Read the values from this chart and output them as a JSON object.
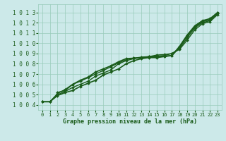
{
  "xlabel": "Graphe pression niveau de la mer (hPa)",
  "xlim": [
    -0.5,
    23.5
  ],
  "ylim": [
    1003.5,
    1013.8
  ],
  "yticks": [
    1004,
    1005,
    1006,
    1007,
    1008,
    1009,
    1010,
    1011,
    1012,
    1013
  ],
  "xticks": [
    0,
    1,
    2,
    3,
    4,
    5,
    6,
    7,
    8,
    9,
    10,
    11,
    12,
    13,
    14,
    15,
    16,
    17,
    18,
    19,
    20,
    21,
    22,
    23
  ],
  "background_color": "#cce9e9",
  "grid_color": "#99ccbb",
  "line_color": "#1a5c1a",
  "series": [
    {
      "x": [
        0,
        1,
        2,
        3,
        4,
        5,
        6,
        7,
        8,
        9,
        10,
        11,
        12,
        13,
        14,
        15,
        16,
        17,
        18,
        19,
        20,
        21,
        22,
        23
      ],
      "y": [
        1004.3,
        1004.3,
        1004.9,
        1005.2,
        1005.4,
        1005.8,
        1006.1,
        1006.4,
        1006.9,
        1007.2,
        1007.5,
        1008.0,
        1008.3,
        1008.5,
        1008.6,
        1008.6,
        1008.7,
        1008.8,
        1009.6,
        1010.7,
        1011.6,
        1012.1,
        1012.3,
        1013.0
      ],
      "linewidth": 1.2
    },
    {
      "x": [
        0,
        1,
        2,
        3,
        4,
        5,
        6,
        7,
        8,
        9,
        10,
        11,
        12,
        13,
        14,
        15,
        16,
        17,
        18,
        19,
        20,
        21,
        22,
        23
      ],
      "y": [
        1004.3,
        1004.3,
        1005.0,
        1005.3,
        1005.7,
        1006.0,
        1006.3,
        1006.8,
        1007.1,
        1007.4,
        1008.0,
        1008.3,
        1008.5,
        1008.6,
        1008.7,
        1008.85,
        1008.9,
        1009.0,
        1009.5,
        1010.5,
        1011.5,
        1012.0,
        1012.2,
        1012.9
      ],
      "linewidth": 1.0
    },
    {
      "x": [
        0,
        1,
        2,
        3,
        4,
        5,
        6,
        7,
        8,
        9,
        10,
        11,
        12,
        13,
        14,
        15,
        16,
        17,
        18,
        19,
        20,
        21,
        22,
        23
      ],
      "y": [
        1004.3,
        1004.3,
        1005.1,
        1005.5,
        1006.0,
        1006.3,
        1006.65,
        1007.0,
        1007.35,
        1007.7,
        1008.1,
        1008.4,
        1008.55,
        1008.65,
        1008.7,
        1008.75,
        1008.8,
        1009.0,
        1009.4,
        1010.3,
        1011.3,
        1011.9,
        1012.1,
        1012.8
      ],
      "linewidth": 1.0
    },
    {
      "x": [
        2,
        3,
        4,
        5,
        6,
        7,
        8,
        9,
        10,
        11,
        12,
        13,
        14,
        15,
        16,
        17,
        18,
        19,
        20,
        21,
        22,
        23
      ],
      "y": [
        1005.2,
        1005.4,
        1006.0,
        1006.4,
        1006.7,
        1007.2,
        1007.5,
        1007.8,
        1008.2,
        1008.5,
        1008.55,
        1008.6,
        1008.65,
        1008.7,
        1008.75,
        1008.8,
        1009.7,
        1010.8,
        1011.7,
        1012.2,
        1012.4,
        1013.0
      ],
      "linewidth": 1.2
    }
  ]
}
